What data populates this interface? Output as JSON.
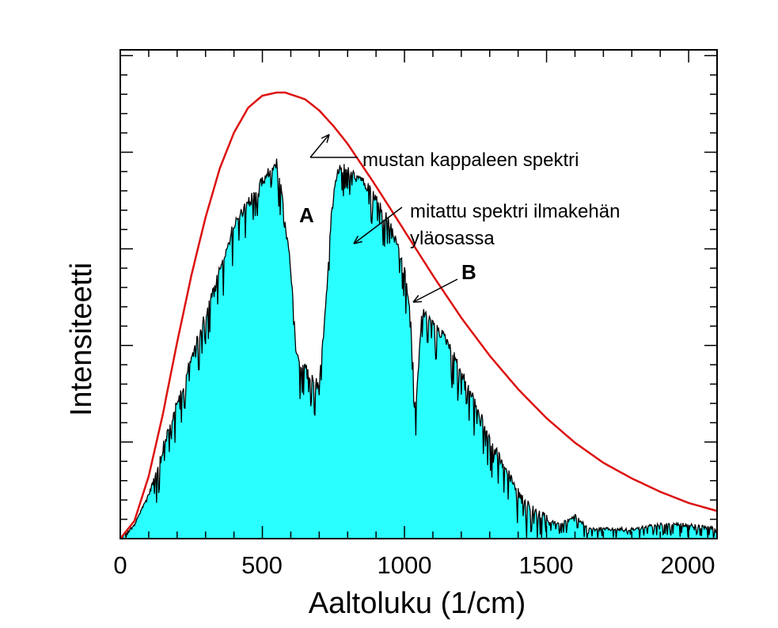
{
  "chart_data": {
    "type": "line",
    "xlabel": "Aaltoluku (1/cm)",
    "ylabel": "Intensiteetti",
    "xlim": [
      0,
      2100
    ],
    "ylim": [
      0,
      1.0
    ],
    "x_ticks": [
      0,
      500,
      1000,
      1500,
      2000
    ],
    "x_tick_labels": [
      "0",
      "500",
      "1000",
      "1500",
      "2000"
    ],
    "y_tick_labels_shown": false,
    "colors": {
      "blackbody": "#dd1111",
      "fill": "#2affff",
      "measured_line": "#000000"
    },
    "series": [
      {
        "name": "mustan kappaleen spektri",
        "style": "smooth red line",
        "x": [
          0,
          50,
          100,
          150,
          200,
          250,
          300,
          350,
          400,
          450,
          500,
          550,
          580,
          650,
          700,
          750,
          800,
          900,
          1000,
          1100,
          1200,
          1300,
          1400,
          1500,
          1600,
          1700,
          1800,
          1900,
          2000,
          2100
        ],
        "y": [
          0.0,
          0.04,
          0.14,
          0.28,
          0.44,
          0.59,
          0.72,
          0.83,
          0.91,
          0.966,
          0.993,
          1.0,
          1.0,
          0.985,
          0.96,
          0.925,
          0.885,
          0.79,
          0.69,
          0.59,
          0.495,
          0.41,
          0.335,
          0.27,
          0.215,
          0.17,
          0.135,
          0.105,
          0.08,
          0.062
        ]
      },
      {
        "name": "mitattu spektri ilmakehän yläosassa",
        "style": "cyan-filled noisy black line",
        "x": [
          0,
          50,
          100,
          150,
          200,
          250,
          300,
          350,
          400,
          450,
          500,
          550,
          570,
          600,
          620,
          650,
          680,
          700,
          720,
          740,
          760,
          780,
          800,
          850,
          900,
          950,
          1000,
          1020,
          1040,
          1060,
          1080,
          1100,
          1150,
          1200,
          1250,
          1300,
          1350,
          1400,
          1450,
          1500,
          1550,
          1600,
          1650,
          1700,
          1800,
          1900,
          2000,
          2100
        ],
        "y": [
          0.0,
          0.03,
          0.1,
          0.2,
          0.3,
          0.4,
          0.5,
          0.6,
          0.7,
          0.75,
          0.8,
          0.84,
          0.76,
          0.6,
          0.4,
          0.38,
          0.35,
          0.34,
          0.5,
          0.7,
          0.82,
          0.83,
          0.82,
          0.8,
          0.76,
          0.7,
          0.6,
          0.5,
          0.28,
          0.5,
          0.5,
          0.48,
          0.44,
          0.37,
          0.3,
          0.22,
          0.16,
          0.1,
          0.06,
          0.04,
          0.03,
          0.05,
          0.02,
          0.02,
          0.02,
          0.03,
          0.03,
          0.02
        ]
      }
    ],
    "annotations": [
      {
        "text": "mustan kappaleen spektri"
      },
      {
        "text": "mitattu spektri ilmakehän"
      },
      {
        "text": "yläosassa"
      },
      {
        "text": "A"
      },
      {
        "text": "B"
      }
    ]
  }
}
